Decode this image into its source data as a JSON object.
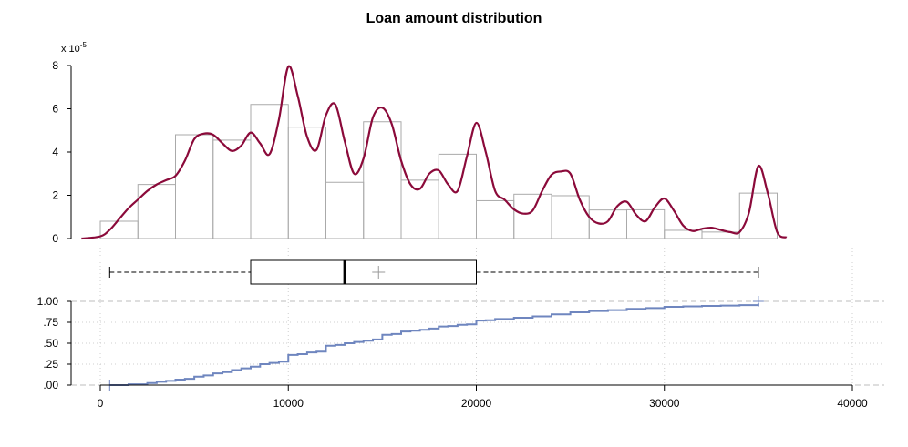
{
  "chart_data": {
    "type": "histogram-density-boxplot-ecdf",
    "title": "Loan amount distribution",
    "x_axis": {
      "ticks": [
        0,
        10000,
        20000,
        30000,
        40000
      ],
      "tick_labels": [
        "0",
        "10000",
        "20000",
        "30000",
        "40000"
      ],
      "range": [
        -1000,
        41000
      ]
    },
    "histogram": {
      "y_multiplier_label": "x 10",
      "y_multiplier_exponent": "-5",
      "y_ticks": [
        0,
        2,
        4,
        6,
        8
      ],
      "y_tick_labels": [
        "0",
        "2",
        "4",
        "6",
        "8"
      ],
      "y_range": [
        0,
        8
      ],
      "bin_width": 2000,
      "bin_starts": [
        0,
        2000,
        4000,
        6000,
        8000,
        10000,
        12000,
        14000,
        16000,
        18000,
        20000,
        22000,
        24000,
        26000,
        28000,
        30000,
        32000,
        34000
      ],
      "values": [
        0.8,
        2.5,
        4.8,
        4.55,
        6.2,
        5.15,
        2.6,
        5.4,
        2.7,
        3.9,
        1.75,
        2.05,
        1.98,
        1.32,
        1.33,
        0.38,
        0.3,
        2.1
      ],
      "bar_color": "#aaaaaa"
    },
    "density": {
      "color": "#8b0a3a",
      "x": [
        -1000,
        0,
        500,
        1000,
        1500,
        2000,
        2500,
        3000,
        3500,
        4000,
        4500,
        5000,
        5500,
        6000,
        6500,
        7000,
        7500,
        8000,
        8500,
        9000,
        9500,
        10000,
        10500,
        11000,
        11500,
        12000,
        12500,
        13000,
        13500,
        14000,
        14500,
        15000,
        15500,
        16000,
        16500,
        17000,
        17500,
        18000,
        18500,
        19000,
        19500,
        20000,
        20500,
        21000,
        21500,
        22000,
        22500,
        23000,
        23500,
        24000,
        24500,
        25000,
        25500,
        26000,
        26500,
        27000,
        27500,
        28000,
        28500,
        29000,
        29500,
        30000,
        30500,
        31000,
        31500,
        32000,
        32500,
        33000,
        33500,
        34000,
        34500,
        35000,
        35500,
        36000,
        36500
      ],
      "y": [
        0.0,
        0.1,
        0.4,
        0.9,
        1.4,
        1.8,
        2.2,
        2.5,
        2.7,
        2.9,
        3.6,
        4.6,
        4.85,
        4.8,
        4.4,
        4.05,
        4.3,
        4.9,
        4.4,
        3.9,
        5.5,
        7.95,
        6.6,
        4.7,
        4.1,
        5.7,
        6.2,
        4.5,
        3.0,
        3.7,
        5.6,
        6.05,
        5.3,
        3.6,
        2.5,
        2.3,
        3.0,
        3.15,
        2.5,
        2.2,
        3.8,
        5.35,
        4.0,
        2.2,
        1.8,
        1.35,
        1.15,
        1.3,
        2.2,
        2.95,
        3.1,
        3.0,
        1.8,
        1.0,
        0.7,
        0.8,
        1.5,
        1.7,
        1.1,
        0.8,
        1.45,
        1.85,
        1.3,
        0.6,
        0.35,
        0.45,
        0.5,
        0.4,
        0.3,
        0.3,
        1.2,
        3.35,
        2.1,
        0.3,
        0.05
      ]
    },
    "boxplot": {
      "whisker_low": 500,
      "q1": 8000,
      "median": 13000,
      "mean": 14800,
      "q3": 20000,
      "whisker_high": 35000
    },
    "ecdf": {
      "color": "#6f86bf",
      "y_ticks": [
        0,
        0.25,
        0.5,
        0.75,
        1.0
      ],
      "y_tick_labels": [
        ".00",
        ".25",
        ".50",
        ".75",
        "1.00"
      ],
      "x_min_marker": 500,
      "x_max_marker": 35000,
      "steps": [
        [
          500,
          0.0
        ],
        [
          1500,
          0.01
        ],
        [
          2500,
          0.025
        ],
        [
          3000,
          0.04
        ],
        [
          3500,
          0.05
        ],
        [
          4000,
          0.065
        ],
        [
          4500,
          0.075
        ],
        [
          5000,
          0.1
        ],
        [
          5500,
          0.115
        ],
        [
          6000,
          0.14
        ],
        [
          6500,
          0.155
        ],
        [
          7000,
          0.18
        ],
        [
          7500,
          0.2
        ],
        [
          8000,
          0.22
        ],
        [
          8500,
          0.25
        ],
        [
          9000,
          0.265
        ],
        [
          9500,
          0.28
        ],
        [
          10000,
          0.36
        ],
        [
          10500,
          0.37
        ],
        [
          11000,
          0.39
        ],
        [
          11500,
          0.4
        ],
        [
          12000,
          0.47
        ],
        [
          12500,
          0.48
        ],
        [
          13000,
          0.5
        ],
        [
          13500,
          0.515
        ],
        [
          14000,
          0.53
        ],
        [
          14500,
          0.545
        ],
        [
          15000,
          0.6
        ],
        [
          15500,
          0.61
        ],
        [
          16000,
          0.64
        ],
        [
          16500,
          0.65
        ],
        [
          17000,
          0.66
        ],
        [
          17500,
          0.675
        ],
        [
          18000,
          0.7
        ],
        [
          18500,
          0.705
        ],
        [
          19000,
          0.72
        ],
        [
          19500,
          0.725
        ],
        [
          20000,
          0.77
        ],
        [
          20500,
          0.775
        ],
        [
          21000,
          0.79
        ],
        [
          22000,
          0.805
        ],
        [
          23000,
          0.82
        ],
        [
          24000,
          0.845
        ],
        [
          25000,
          0.87
        ],
        [
          26000,
          0.885
        ],
        [
          27000,
          0.895
        ],
        [
          28000,
          0.91
        ],
        [
          29000,
          0.92
        ],
        [
          30000,
          0.935
        ],
        [
          31000,
          0.94
        ],
        [
          32000,
          0.945
        ],
        [
          33000,
          0.95
        ],
        [
          34000,
          0.955
        ],
        [
          35000,
          0.975
        ]
      ]
    }
  }
}
